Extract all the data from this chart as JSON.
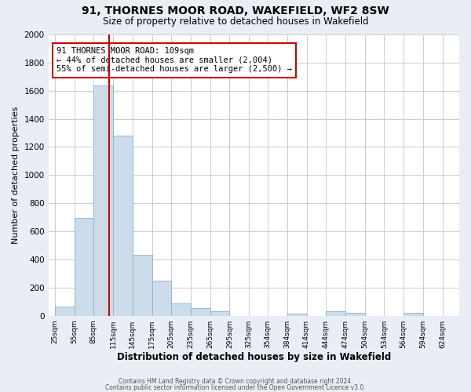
{
  "title": "91, THORNES MOOR ROAD, WAKEFIELD, WF2 8SW",
  "subtitle": "Size of property relative to detached houses in Wakefield",
  "xlabel": "Distribution of detached houses by size in Wakefield",
  "ylabel": "Number of detached properties",
  "bar_left_edges": [
    25,
    55,
    85,
    115,
    145,
    175,
    205,
    235,
    265,
    295,
    325,
    354,
    384,
    414,
    444,
    474,
    504,
    534,
    564,
    594
  ],
  "bar_heights": [
    65,
    695,
    1635,
    1280,
    435,
    250,
    90,
    52,
    30,
    0,
    0,
    0,
    15,
    0,
    30,
    20,
    0,
    0,
    20,
    0
  ],
  "bar_widths": [
    30,
    30,
    30,
    30,
    30,
    30,
    30,
    30,
    30,
    30,
    29,
    30,
    30,
    30,
    30,
    30,
    30,
    30,
    30,
    30
  ],
  "bar_color": "#ccdcea",
  "bar_edgecolor": "#8ab4cc",
  "tick_labels": [
    "25sqm",
    "55sqm",
    "85sqm",
    "115sqm",
    "145sqm",
    "175sqm",
    "205sqm",
    "235sqm",
    "265sqm",
    "295sqm",
    "325sqm",
    "354sqm",
    "384sqm",
    "414sqm",
    "444sqm",
    "474sqm",
    "504sqm",
    "534sqm",
    "564sqm",
    "594sqm",
    "624sqm"
  ],
  "tick_positions": [
    25,
    55,
    85,
    115,
    145,
    175,
    205,
    235,
    265,
    295,
    325,
    354,
    384,
    414,
    444,
    474,
    504,
    534,
    564,
    594,
    624
  ],
  "ylim": [
    0,
    2000
  ],
  "yticks": [
    0,
    200,
    400,
    600,
    800,
    1000,
    1200,
    1400,
    1600,
    1800,
    2000
  ],
  "xlim": [
    15,
    650
  ],
  "vline_x": 109,
  "vline_color": "#cc0000",
  "annotation_text": "91 THORNES MOOR ROAD: 109sqm\n← 44% of detached houses are smaller (2,004)\n55% of semi-detached houses are larger (2,500) →",
  "annotation_box_color": "#ffffff",
  "annotation_box_edgecolor": "#cc0000",
  "footer_line1": "Contains HM Land Registry data © Crown copyright and database right 2024.",
  "footer_line2": "Contains public sector information licensed under the Open Government Licence v3.0.",
  "background_color": "#e8eef4",
  "plot_bg_color": "#ffffff",
  "grid_color": "#cccccc"
}
